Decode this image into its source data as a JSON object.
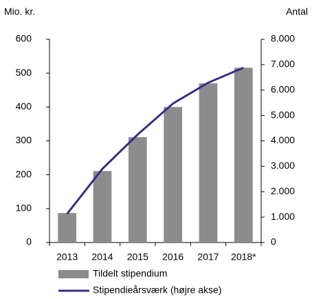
{
  "chart_data": {
    "type": "bar",
    "y_label": "Mio. kr.",
    "y2_label": "Antal",
    "categories": [
      "2013",
      "2014",
      "2015",
      "2016",
      "2017",
      "2018*"
    ],
    "series": [
      {
        "name": "Tildelt stipendium",
        "type": "bar",
        "color": "#8c8c8c",
        "values": [
          87,
          211,
          311,
          400,
          470,
          516
        ]
      },
      {
        "name": "Stipendieårsværk (højre akse)",
        "type": "line",
        "axis": "y2",
        "color": "#3b2a8a",
        "values": [
          1130,
          2900,
          4250,
          5470,
          6290,
          6880
        ]
      }
    ],
    "ylim": [
      0,
      600
    ],
    "yticks": [
      0,
      100,
      200,
      300,
      400,
      500,
      600
    ],
    "y2lim": [
      0,
      8000
    ],
    "y2ticks": [
      0,
      {
        "value": 1000,
        "label": "1.000"
      },
      {
        "value": 2000,
        "label": "2.000"
      },
      {
        "value": 3000,
        "label": "3.000"
      },
      {
        "value": 4000,
        "label": "4.000"
      },
      {
        "value": 5000,
        "label": "5.000"
      },
      {
        "value": 6000,
        "label": "6.000"
      },
      {
        "value": 7000,
        "label": "7.000"
      },
      {
        "value": 8000,
        "label": "8.000"
      }
    ],
    "grid": false
  }
}
